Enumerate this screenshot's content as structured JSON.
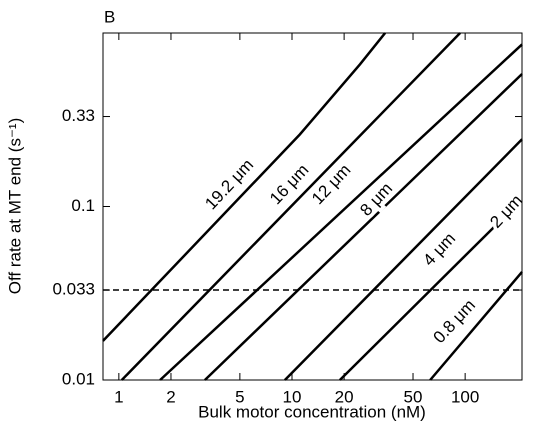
{
  "chart_data": {
    "type": "line",
    "title": "B",
    "xlabel": "Bulk motor concentration (nM)",
    "ylabel": "Off rate at MT end (s⁻¹)",
    "xscale": "log",
    "yscale": "log",
    "xlim": [
      0.81,
      213
    ],
    "ylim": [
      0.01,
      1.0
    ],
    "xticks": [
      1,
      2,
      5,
      10,
      20,
      50,
      100
    ],
    "yticks": [
      0.01,
      0.033,
      0.1,
      0.33
    ],
    "hline": 0.033,
    "color": "#000000",
    "series": [
      {
        "name": "19.2 μm",
        "x": [
          0.81,
          11.1,
          24.7,
          34.5
        ],
        "values": [
          0.0168,
          0.26,
          0.66,
          1.0
        ]
      },
      {
        "name": "16 μm",
        "x": [
          1.04,
          93.5
        ],
        "values": [
          0.01,
          1.0
        ]
      },
      {
        "name": "12 μm",
        "x": [
          1.73,
          213
        ],
        "values": [
          0.01,
          0.86
        ]
      },
      {
        "name": "8 μm",
        "x": [
          3.14,
          213
        ],
        "values": [
          0.01,
          0.58
        ]
      },
      {
        "name": "4 μm",
        "x": [
          9.1,
          213
        ],
        "values": [
          0.01,
          0.244
        ]
      },
      {
        "name": "2 μm",
        "x": [
          18.9,
          213
        ],
        "values": [
          0.01,
          0.11
        ]
      },
      {
        "name": "0.8 μm",
        "x": [
          62.8,
          213
        ],
        "values": [
          0.01,
          0.042
        ]
      }
    ]
  }
}
